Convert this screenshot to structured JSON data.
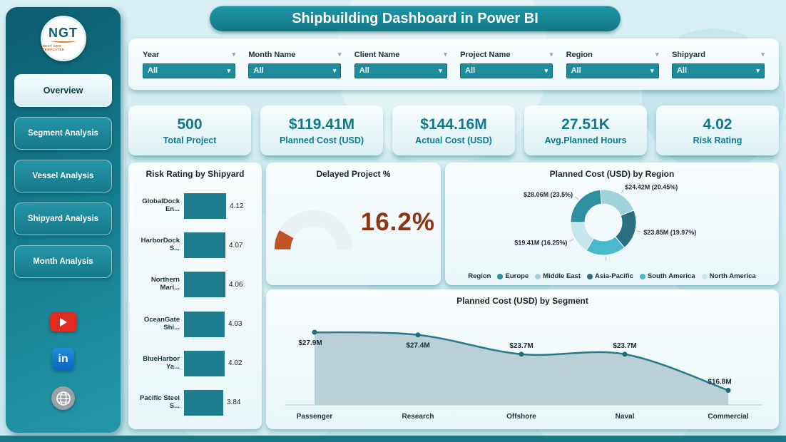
{
  "app": {
    "title": "Shipbuilding Dashboard in Power BI"
  },
  "sidebar": {
    "logo": {
      "text": "NGT",
      "subtext": "NEXT GEN TEMPLATES"
    },
    "items": [
      {
        "label": "Overview",
        "active": true
      },
      {
        "label": "Segment Analysis",
        "active": false
      },
      {
        "label": "Vessel Analysis",
        "active": false
      },
      {
        "label": "Shipyard Analysis",
        "active": false
      },
      {
        "label": "Month Analysis",
        "active": false
      }
    ],
    "social": [
      "youtube",
      "linkedin",
      "website"
    ]
  },
  "filters": [
    {
      "label": "Year",
      "value": "All"
    },
    {
      "label": "Month Name",
      "value": "All"
    },
    {
      "label": "Client Name",
      "value": "All"
    },
    {
      "label": "Project Name",
      "value": "All"
    },
    {
      "label": "Region",
      "value": "All"
    },
    {
      "label": "Shipyard",
      "value": "All"
    }
  ],
  "kpis": [
    {
      "value": "500",
      "label": "Total Project"
    },
    {
      "value": "$119.41M",
      "label": "Planned Cost (USD)"
    },
    {
      "value": "$144.16M",
      "label": "Actual Cost (USD)"
    },
    {
      "value": "27.51K",
      "label": "Avg.Planned Hours"
    },
    {
      "value": "4.02",
      "label": "Risk Rating"
    }
  ],
  "chart_data": [
    {
      "id": "risk_rating_by_shipyard",
      "type": "bar",
      "orientation": "horizontal",
      "title": "Risk Rating by Shipyard",
      "categories": [
        "GlobalDock En...",
        "HarborDock S...",
        "Northern Mari...",
        "OceanGate Shi...",
        "BlueHarbor Ya...",
        "Pacific Steel S..."
      ],
      "values": [
        4.12,
        4.07,
        4.06,
        4.03,
        4.02,
        3.84
      ],
      "xlim": [
        0,
        4.5
      ],
      "bar_color": "#1e7e8f",
      "grid": false
    },
    {
      "id": "delayed_project_pct",
      "type": "gauge",
      "title": "Delayed Project %",
      "value": 16.2,
      "max": 100,
      "display": "16.2%",
      "arc_color": "#bf5227",
      "text_color": "#8c3414"
    },
    {
      "id": "planned_cost_by_region",
      "type": "pie",
      "title": "Planned Cost (USD) by Region",
      "legend_title": "Region",
      "legend_position": "bottom",
      "series": [
        {
          "name": "Europe",
          "value": 28.06,
          "pct": 23.5,
          "label": "$28.06M (23.5%)",
          "color": "#2e8fa0"
        },
        {
          "name": "Middle East",
          "value": 24.42,
          "pct": 20.45,
          "label": "$24.42M (20.45%)",
          "color": "#9ed3dc"
        },
        {
          "name": "Asia-Pacific",
          "value": 23.85,
          "pct": 19.97,
          "label": "$23.85M (19.97%)",
          "color": "#2a6f7f"
        },
        {
          "name": "South America",
          "value": 23.67,
          "pct": 19.82,
          "label": "$23.67M (19.82%)",
          "color": "#49b9cc"
        },
        {
          "name": "North America",
          "value": 19.41,
          "pct": 16.25,
          "label": "$19.41M (16.25%)",
          "color": "#c5e6ec"
        }
      ]
    },
    {
      "id": "planned_cost_by_segment",
      "type": "area",
      "title": "Planned Cost (USD) by Segment",
      "categories": [
        "Passenger",
        "Research",
        "Offshore",
        "Naval",
        "Commercial"
      ],
      "values": [
        27.9,
        27.4,
        23.7,
        23.7,
        16.8
      ],
      "labels": [
        "$27.9M",
        "$27.4M",
        "$23.7M",
        "$23.7M",
        "$16.8M"
      ],
      "ylim": [
        14,
        29
      ],
      "line_color": "#27798b",
      "fill_color": "#b5ced5",
      "grid": false
    }
  ]
}
